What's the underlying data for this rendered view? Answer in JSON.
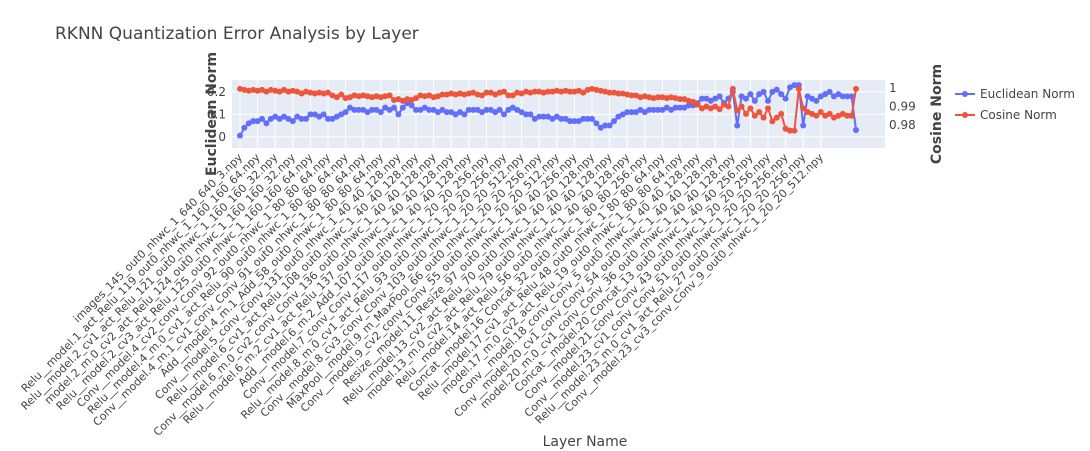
{
  "chart_data": {
    "type": "line",
    "title": "RKNN Quantization Error Analysis by Layer",
    "x_label": "Layer Name",
    "y_label": "Euclidean Norm",
    "y2_label": "Cosine Norm",
    "categories": [
      "images_145_out0_nhwc_1_640_640_3.npy",
      null,
      null,
      null,
      "Relu__model.1_act_Relu_119_out0_nhwc_1_160_160_64.npy",
      null,
      null,
      null,
      "Relu__model.2_cv1_act_Relu_121_out0_nhwc_1_160_160_32.npy",
      null,
      null,
      null,
      "model.2_m.0_cv2_act_Relu_124_out0_nhwc_1_160_160_32.npy",
      null,
      null,
      null,
      "Relu__model.2_cv3_act_Relu_125_out0_nhwc_1_160_160_64.npy",
      null,
      null,
      null,
      "Conv__model.4_cv2_conv_Conv_92_out0_nhwc_1_80_80_64.npy",
      null,
      null,
      null,
      "Relu__model.4_m.0_cv1_act_Relu_90_out0_nhwc_1_80_80_64.npy",
      null,
      null,
      null,
      "Conv__model.4_m.1_cv1_conv_Conv_91_out0_nhwc_1_80_80_64.npy",
      null,
      null,
      null,
      "Add__model.4_m.1_Add_58_out0_nhwc_1_80_80_64.npy",
      null,
      null,
      null,
      "Conv__model.5_conv_Conv_131_out0_nhwc_1_40_40_128.npy",
      null,
      null,
      null,
      "Relu__model.6_cv1_act_Relu_108_out0_nhwc_1_40_40_128.npy",
      null,
      null,
      null,
      "Conv__model.6_m.0_cv2_conv_Conv_136_out0_nhwc_1_40_40_128.npy",
      null,
      null,
      null,
      "Relu__model.6_m.2_cv1_act_Relu_137_out0_nhwc_1_40_40_128.npy",
      null,
      null,
      null,
      "Add__model.6_m.2_Add_107_out0_nhwc_1_40_40_128.npy",
      null,
      null,
      null,
      "Conv__model.7_conv_Conv_117_out0_nhwc_1_20_20_256.npy",
      null,
      null,
      null,
      "Relu__model.8_m.0_cv1_act_Relu_93_out0_nhwc_1_20_20_256.npy",
      null,
      null,
      null,
      "Conv__model.8_cv3_conv_Conv_103_out0_nhwc_1_20_20_512.npy",
      null,
      null,
      null,
      "MaxPool__model.9_m_MaxPool_66_out0_nhwc_1_20_20_256.npy",
      null,
      null,
      null,
      "Conv__model.9_cv2_conv_Conv_55_out0_nhwc_1_20_20_512.npy",
      null,
      null,
      null,
      "Resize__model.11_Resize_97_out0_nhwc_1_40_40_256.npy",
      null,
      null,
      null,
      "Relu__model.13_cv2_act_Relu_70_out0_nhwc_1_40_40_128.npy",
      null,
      null,
      null,
      "model.13_m.0_cv2_act_Relu_79_out0_nhwc_1_40_40_128.npy",
      null,
      null,
      null,
      "Relu__model.14_act_Relu_56_out0_nhwc_1_40_40_128.npy",
      null,
      null,
      null,
      "Concat__model.16_Concat_32_out0_nhwc_1_80_80_256.npy",
      null,
      null,
      null,
      "Relu__model.17_cv1_act_Relu_48_out0_nhwc_1_80_80_64.npy",
      null,
      null,
      null,
      "model.17_m.0_cv2_act_Relu_19_out0_nhwc_1_80_80_64.npy",
      null,
      null,
      null,
      "Conv__model.18_conv_Conv_5_out0_nhwc_1_40_40_128.npy",
      null,
      null,
      null,
      "Conv__model.20_cv1_conv_Conv_54_out0_nhwc_1_40_40_128.npy",
      null,
      null,
      null,
      "model.20_m.0_cv1_conv_Conv_36_out0_nhwc_1_40_40_128.npy",
      null,
      null,
      null,
      "Concat__model.20_Concat_13_out0_nhwc_1_40_40_256.npy",
      null,
      null,
      null,
      "Conv__model.21_conv_Conv_43_out0_nhwc_1_20_20_256.npy",
      null,
      null,
      null,
      "Conv__model.23_cv1_conv_Conv_51_out0_nhwc_1_20_20_256.npy",
      null,
      null,
      null,
      "Relu__model.23_m.0_cv1_act_Relu_27_out0_nhwc_1_20_20_256.npy",
      null,
      null,
      null,
      "Conv__model.23_cv3_conv_Conv_9_out0_nhwc_1_20_20_512.npy",
      null,
      null,
      null,
      null,
      null,
      null,
      null,
      null
    ],
    "series": [
      {
        "name": "Euclidean Norm",
        "color": "#636efa",
        "values": [
          0.005,
          0.04,
          0.06,
          0.07,
          0.07,
          0.08,
          0.06,
          0.08,
          0.09,
          0.08,
          0.09,
          0.08,
          0.07,
          0.09,
          0.08,
          0.08,
          0.1,
          0.1,
          0.09,
          0.1,
          0.08,
          0.08,
          0.09,
          0.1,
          0.11,
          0.13,
          0.12,
          0.12,
          0.12,
          0.11,
          0.12,
          0.12,
          0.11,
          0.13,
          0.12,
          0.13,
          0.1,
          0.13,
          0.15,
          0.14,
          0.12,
          0.12,
          0.13,
          0.12,
          0.12,
          0.11,
          0.12,
          0.11,
          0.11,
          0.1,
          0.11,
          0.1,
          0.12,
          0.12,
          0.12,
          0.11,
          0.12,
          0.12,
          0.11,
          0.12,
          0.1,
          0.12,
          0.13,
          0.12,
          0.11,
          0.1,
          0.1,
          0.08,
          0.09,
          0.09,
          0.09,
          0.08,
          0.09,
          0.08,
          0.08,
          0.07,
          0.07,
          0.07,
          0.08,
          0.08,
          0.08,
          0.06,
          0.04,
          0.05,
          0.05,
          0.07,
          0.09,
          0.1,
          0.11,
          0.11,
          0.11,
          0.12,
          0.11,
          0.12,
          0.12,
          0.12,
          0.12,
          0.13,
          0.12,
          0.13,
          0.13,
          0.13,
          0.14,
          0.14,
          0.15,
          0.17,
          0.17,
          0.16,
          0.17,
          0.18,
          0.15,
          0.17,
          0.2,
          0.05,
          0.18,
          0.17,
          0.19,
          0.16,
          0.19,
          0.2,
          0.16,
          0.2,
          0.21,
          0.19,
          0.17,
          0.22,
          0.23,
          0.23,
          0.05,
          0.18,
          0.17,
          0.16,
          0.18,
          0.19,
          0.2,
          0.18,
          0.19,
          0.18,
          0.18,
          0.18,
          0.03
        ]
      },
      {
        "name": "Cosine Norm",
        "color": "#ef553b",
        "axis": "y2",
        "values": [
          0.9995,
          0.999,
          0.9985,
          0.999,
          0.9985,
          0.999,
          0.998,
          0.999,
          0.9985,
          0.998,
          0.999,
          0.998,
          0.9985,
          0.998,
          0.997,
          0.998,
          0.9975,
          0.997,
          0.9975,
          0.997,
          0.9975,
          0.996,
          0.995,
          0.9965,
          0.9945,
          0.995,
          0.996,
          0.9955,
          0.996,
          0.9955,
          0.995,
          0.9955,
          0.995,
          0.9955,
          0.996,
          0.9935,
          0.994,
          0.993,
          0.994,
          0.9935,
          0.9945,
          0.996,
          0.9955,
          0.996,
          0.995,
          0.9955,
          0.9965,
          0.9965,
          0.997,
          0.9965,
          0.997,
          0.9965,
          0.997,
          0.9975,
          0.9965,
          0.996,
          0.9975,
          0.9975,
          0.9965,
          0.9975,
          0.998,
          0.996,
          0.996,
          0.9975,
          0.997,
          0.998,
          0.9975,
          0.998,
          0.998,
          0.9975,
          0.998,
          0.998,
          0.9985,
          0.998,
          0.9985,
          0.998,
          0.998,
          0.9985,
          0.9975,
          0.999,
          0.9995,
          0.999,
          0.9985,
          0.998,
          0.9975,
          0.9975,
          0.997,
          0.997,
          0.9965,
          0.996,
          0.996,
          0.995,
          0.9955,
          0.995,
          0.9945,
          0.995,
          0.995,
          0.9945,
          0.995,
          0.9945,
          0.994,
          0.994,
          0.993,
          0.9925,
          0.991,
          0.989,
          0.99,
          0.989,
          0.99,
          0.9885,
          0.991,
          0.99,
          0.9995,
          0.988,
          0.99,
          0.986,
          0.989,
          0.985,
          0.987,
          0.984,
          0.989,
          0.982,
          0.984,
          0.986,
          0.978,
          0.977,
          0.977,
          0.9995,
          0.989,
          0.987,
          0.986,
          0.985,
          0.987,
          0.985,
          0.986,
          0.984,
          0.985,
          0.986,
          0.985,
          0.985,
          0.9995
        ]
      }
    ],
    "ylim": [
      -0.05,
      0.253
    ],
    "yticks": [
      0,
      0.1,
      0.2
    ],
    "y2lim": [
      0.9676,
      1.0043
    ],
    "y2ticks": [
      0.98,
      0.99,
      1
    ],
    "grid": true,
    "legend": "right"
  }
}
